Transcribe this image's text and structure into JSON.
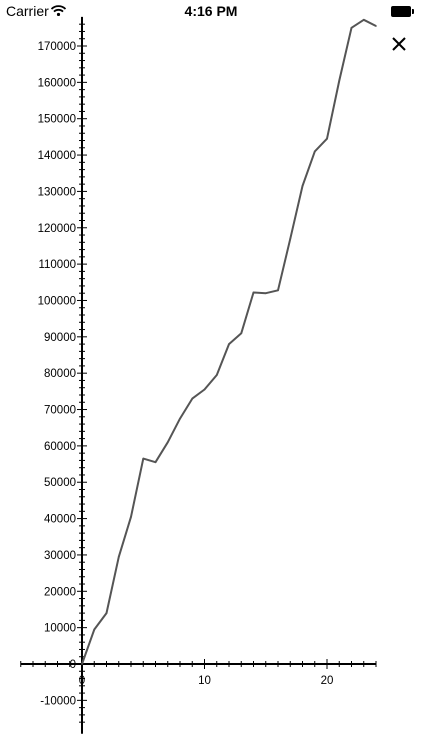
{
  "status_bar": {
    "carrier": "Carrier",
    "time": "4:16 PM",
    "icons": [
      "wifi-icon",
      "battery-icon"
    ]
  },
  "close_button": {
    "icon": "close-icon"
  },
  "chart_data": {
    "type": "line",
    "title": "",
    "xlabel": "",
    "ylabel": "",
    "xlim": [
      -5,
      24
    ],
    "ylim": [
      -17000,
      178000
    ],
    "x_ticks": [
      0,
      10,
      20
    ],
    "y_ticks": [
      -10000,
      0,
      10000,
      20000,
      30000,
      40000,
      50000,
      60000,
      70000,
      80000,
      90000,
      100000,
      110000,
      120000,
      130000,
      140000,
      150000,
      160000,
      170000
    ],
    "grid": false,
    "legend": "none",
    "colors": {
      "line": "#555555",
      "axis": "#000000"
    },
    "x": [
      0,
      1,
      2,
      3,
      4,
      5,
      6,
      7,
      8,
      9,
      10,
      11,
      12,
      13,
      14,
      15,
      16,
      17,
      18,
      19,
      20,
      21,
      22,
      23,
      24
    ],
    "y": [
      0,
      9500,
      14000,
      29500,
      40500,
      56500,
      55500,
      61000,
      67500,
      73000,
      75500,
      79500,
      88000,
      91000,
      102200,
      102000,
      102800,
      117000,
      131500,
      141000,
      144500,
      160500,
      175000,
      177200,
      175500
    ]
  }
}
